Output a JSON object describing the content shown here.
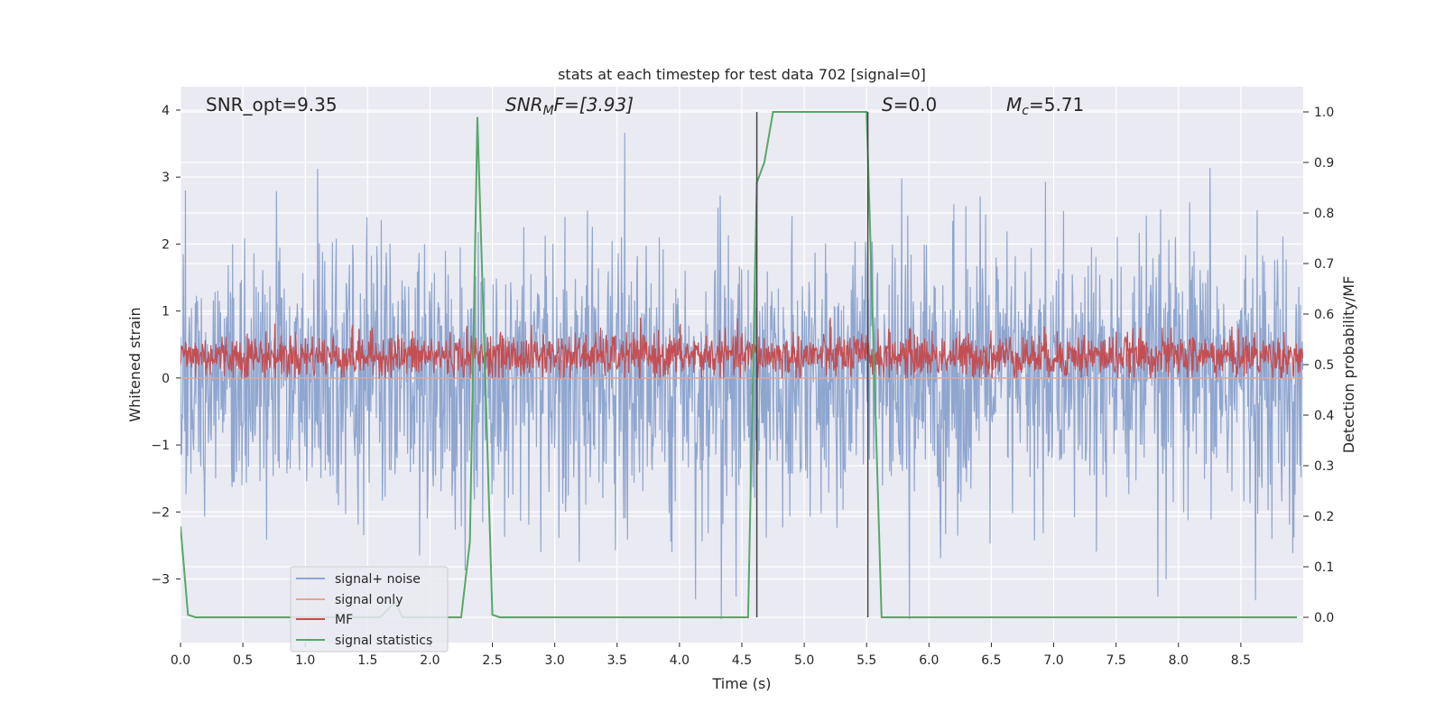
{
  "chart_data": {
    "type": "line",
    "title": "stats at each timestep for test data 702 [signal=0]",
    "xlabel": "Time (s)",
    "ylabel": "Whitened strain",
    "ylabel_right": "Detection probability/MF",
    "xlim": [
      0.0,
      9.0
    ],
    "ylim": [
      -3.95,
      4.35
    ],
    "ylim_right": [
      -0.05,
      1.05
    ],
    "x_ticks": [
      "0.0",
      "0.5",
      "1.0",
      "1.5",
      "2.0",
      "2.5",
      "3.0",
      "3.5",
      "4.0",
      "4.5",
      "5.0",
      "5.5",
      "6.0",
      "6.5",
      "7.0",
      "7.5",
      "8.0",
      "8.5"
    ],
    "x_tick_values": [
      0.0,
      0.5,
      1.0,
      1.5,
      2.0,
      2.5,
      3.0,
      3.5,
      4.0,
      4.5,
      5.0,
      5.5,
      6.0,
      6.5,
      7.0,
      7.5,
      8.0,
      8.5
    ],
    "y_ticks": [
      "4",
      "3",
      "2",
      "1",
      "0",
      "−1",
      "−2",
      "−3"
    ],
    "y_tick_values": [
      4,
      3,
      2,
      1,
      0,
      -1,
      -2,
      -3
    ],
    "y_ticks_right": [
      "1.0",
      "0.9",
      "0.8",
      "0.7",
      "0.6",
      "0.5",
      "0.4",
      "0.3",
      "0.2",
      "0.1",
      "0.0"
    ],
    "y_tick_values_right": [
      1.0,
      0.9,
      0.8,
      0.7,
      0.6,
      0.5,
      0.4,
      0.3,
      0.2,
      0.1,
      0.0
    ],
    "grid": true,
    "legend_placement": "lower-left",
    "annotations": {
      "snr_opt": "SNR_opt=9.35",
      "snr_mf_base": "SNR",
      "snr_mf_sub": "M",
      "snr_mf_rest": "F=[3.93]",
      "s_base": "S",
      "s_rest": "=0.0",
      "mc_base": "M",
      "mc_sub": "c",
      "mc_rest": "=5.71"
    },
    "vertical_lines_x": [
      4.62,
      5.51
    ],
    "series": [
      {
        "name": "signal+ noise",
        "color": "#8fa6cf",
        "axis": "left",
        "description_range": [
          -3.6,
          3.9
        ],
        "n_samples": 2048,
        "values": []
      },
      {
        "name": "signal only",
        "color": "#e8a58f",
        "axis": "left",
        "values_constant": 0.0
      },
      {
        "name": "MF",
        "color": "#c44e52",
        "axis": "left",
        "description_range": [
          0.0,
          0.9
        ],
        "values": []
      },
      {
        "name": "signal statistics",
        "color": "#55a868",
        "axis": "right",
        "x": [
          0.0,
          0.06,
          0.12,
          1.6,
          1.66,
          1.72,
          1.78,
          2.25,
          2.32,
          2.38,
          2.44,
          2.5,
          2.56,
          4.55,
          4.62,
          4.68,
          4.75,
          5.3,
          5.5,
          5.62,
          5.66,
          8.95
        ],
        "values": [
          0.18,
          0.005,
          0.0,
          0.0,
          0.015,
          0.03,
          0.0,
          0.0,
          0.15,
          0.99,
          0.5,
          0.005,
          0.0,
          0.0,
          0.86,
          0.9,
          1.0,
          1.0,
          1.0,
          0.0,
          0.0,
          0.0
        ]
      }
    ]
  },
  "colors": {
    "axes_bg": "#eaeaf2",
    "grid": "#ffffff",
    "text": "#262626",
    "vline": "#444444"
  }
}
